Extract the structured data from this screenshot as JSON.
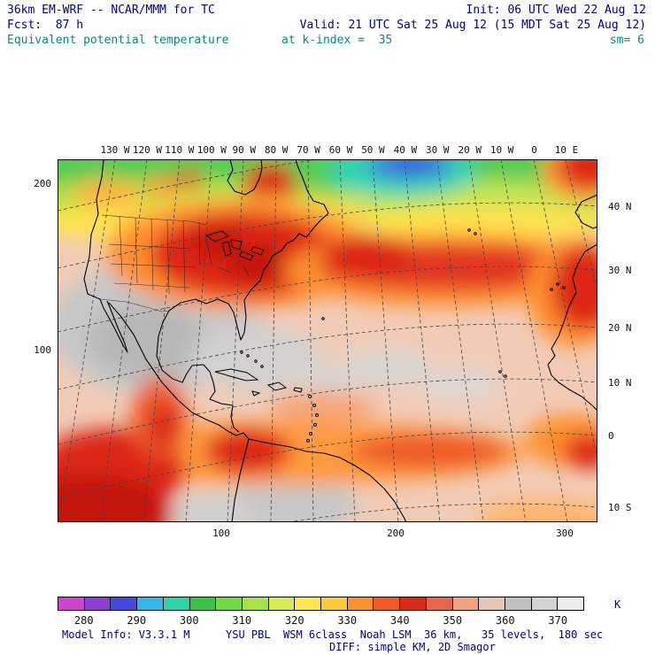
{
  "header": {
    "model_title": "36km EM-WRF -- NCAR/MMM for TC",
    "init": "Init: 06 UTC Wed 22 Aug 12",
    "fcst": "Fcst:  87 h",
    "valid": "Valid: 21 UTC Sat 25 Aug 12 (15 MDT Sat 25 Aug 12)",
    "field": "Equivalent potential temperature",
    "k_index": "at k-index =  35",
    "sm": "sm= 6"
  },
  "axes": {
    "top": [
      "130 W",
      "120 W",
      "110 W",
      "100 W",
      "90 W",
      "80 W",
      "70 W",
      "60 W",
      "50 W",
      "40 W",
      "30 W",
      "20 W",
      "10 W",
      "0",
      "10 E"
    ],
    "right": [
      "40 N",
      "30 N",
      "20 N",
      "10 N",
      "0",
      "10 S"
    ],
    "left": [
      "200",
      "100"
    ],
    "bottom": [
      "100",
      "200",
      "300"
    ]
  },
  "colorbar": {
    "unit": "K",
    "ticks": [
      "280",
      "290",
      "300",
      "310",
      "320",
      "330",
      "340",
      "350",
      "360",
      "370"
    ],
    "value_min": 275,
    "value_max": 375,
    "colors": [
      "#cc44cc",
      "#8a3fd4",
      "#4848e0",
      "#35b6e8",
      "#2fd3a8",
      "#35c443",
      "#6fd843",
      "#a8e04a",
      "#d8ea55",
      "#ffe84d",
      "#ffc93d",
      "#ff9030",
      "#f25a24",
      "#dd2815",
      "#e8654a",
      "#f2a284",
      "#e4c6b4",
      "#c2c0be",
      "#d4d2d0",
      "#eeeceb"
    ]
  },
  "footer": {
    "model_info": "Model Info: V3.3.1 M",
    "physics": "YSU PBL  WSM 6class  Noah LSM  36 km,   35 levels,  180 sec",
    "diffusion": "DIFF: simple KM, 2D Smagor"
  },
  "ui_colors": {
    "text_navy": "#00008b",
    "text_teal": "#008b8b",
    "map_base_fill": "#f2cbb6"
  }
}
